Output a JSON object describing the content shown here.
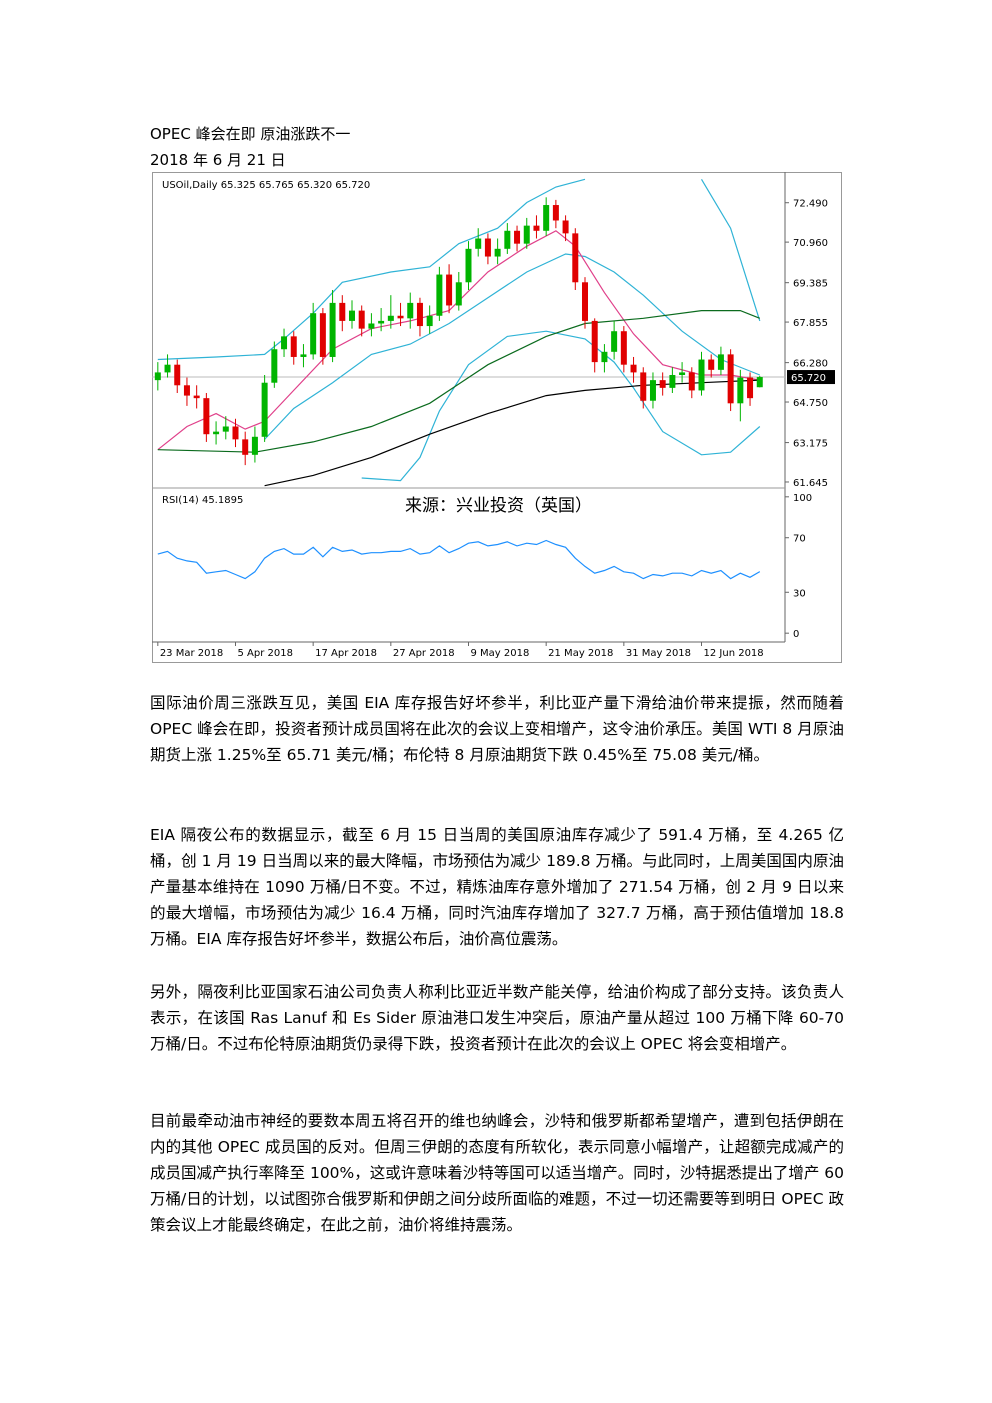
{
  "header": {
    "title": "OPEC 峰会在即  原油涨跌不一",
    "date": "2018 年 6 月 21 日"
  },
  "chart_data": {
    "type": "candlestick",
    "legend_text": "USOil,Daily  65.325 65.765 65.320 65.720",
    "watermark": "来源：兴业投资（英国）",
    "up_color": "#00b400",
    "down_color": "#e00000",
    "xlim": [
      -0.6,
      64.6
    ],
    "xticks": [
      {
        "value": 0,
        "label": "23 Mar 2018"
      },
      {
        "value": 8,
        "label": "5 Apr 2018"
      },
      {
        "value": 16,
        "label": "17 Apr 2018"
      },
      {
        "value": 24,
        "label": "27 Apr 2018"
      },
      {
        "value": 32,
        "label": "9 May 2018"
      },
      {
        "value": 40,
        "label": "21 May 2018"
      },
      {
        "value": 48,
        "label": "31 May 2018"
      },
      {
        "value": 56,
        "label": "12 Jun 2018"
      }
    ],
    "ylim": [
      61.45,
      73.45
    ],
    "yticks": [
      {
        "value": 72.49,
        "label": "72.490"
      },
      {
        "value": 70.96,
        "label": "70.960"
      },
      {
        "value": 69.385,
        "label": "69.385"
      },
      {
        "value": 67.855,
        "label": "67.855"
      },
      {
        "value": 66.28,
        "label": "66.280"
      },
      {
        "value": 64.75,
        "label": "64.750"
      },
      {
        "value": 63.175,
        "label": "63.175"
      },
      {
        "value": 61.645,
        "label": "61.645"
      }
    ],
    "last_price": {
      "value": 65.72,
      "label": "65.720"
    },
    "open": [
      65.6,
      65.9,
      66.2,
      65.4,
      65.0,
      64.9,
      63.5,
      63.6,
      63.8,
      63.3,
      62.7,
      63.4,
      65.5,
      66.8,
      67.3,
      66.5,
      66.6,
      68.2,
      66.5,
      68.6,
      67.9,
      68.3,
      67.6,
      67.8,
      67.9,
      68.1,
      68.0,
      68.6,
      67.7,
      68.1,
      69.7,
      68.5,
      69.4,
      70.7,
      71.1,
      70.4,
      70.7,
      71.4,
      70.9,
      71.6,
      71.4,
      72.4,
      71.8,
      71.3,
      69.4,
      67.9,
      66.3,
      66.7,
      67.5,
      66.2,
      65.9,
      64.8,
      65.6,
      65.3,
      65.8,
      65.9,
      65.2,
      66.4,
      66.0,
      66.6,
      64.7,
      65.7,
      65.325
    ],
    "high": [
      66.3,
      66.6,
      66.4,
      65.7,
      65.4,
      65.1,
      64.0,
      64.2,
      64.1,
      63.6,
      63.8,
      65.8,
      67.1,
      67.6,
      67.5,
      67.0,
      68.6,
      68.4,
      69.1,
      68.9,
      68.7,
      68.5,
      68.2,
      68.4,
      68.9,
      68.6,
      69.0,
      68.8,
      68.5,
      70.0,
      70.1,
      69.8,
      71.0,
      71.5,
      71.3,
      71.1,
      71.7,
      71.6,
      71.9,
      72.0,
      72.7,
      72.6,
      72.0,
      71.5,
      69.6,
      68.0,
      67.0,
      67.9,
      67.7,
      66.5,
      66.1,
      65.9,
      65.9,
      66.1,
      66.3,
      66.1,
      66.7,
      66.6,
      66.9,
      66.8,
      66.0,
      65.9,
      65.765
    ],
    "low": [
      65.2,
      65.7,
      65.1,
      64.6,
      64.5,
      63.2,
      63.1,
      63.3,
      63.0,
      62.3,
      62.4,
      63.2,
      65.3,
      66.5,
      66.2,
      66.1,
      66.4,
      66.2,
      66.3,
      67.5,
      67.6,
      67.3,
      67.3,
      67.5,
      67.6,
      67.7,
      67.6,
      67.3,
      67.4,
      67.9,
      68.2,
      68.3,
      69.1,
      70.4,
      70.1,
      70.1,
      70.5,
      70.6,
      70.7,
      71.1,
      71.2,
      71.5,
      71.0,
      69.1,
      67.6,
      65.9,
      65.9,
      66.4,
      65.9,
      65.5,
      64.5,
      64.5,
      65.0,
      65.1,
      65.5,
      64.9,
      65.0,
      65.7,
      65.8,
      64.4,
      64.0,
      64.6,
      65.32
    ],
    "close": [
      65.9,
      66.2,
      65.4,
      65.0,
      64.9,
      63.5,
      63.6,
      63.8,
      63.3,
      62.7,
      63.4,
      65.5,
      66.8,
      67.3,
      66.5,
      66.6,
      68.2,
      66.5,
      68.6,
      67.9,
      68.3,
      67.6,
      67.8,
      67.9,
      68.1,
      68.0,
      68.6,
      67.7,
      68.1,
      69.7,
      68.5,
      69.4,
      70.7,
      71.1,
      70.4,
      70.7,
      71.4,
      70.9,
      71.6,
      71.4,
      72.4,
      71.8,
      71.3,
      69.4,
      67.9,
      66.3,
      66.7,
      67.5,
      66.2,
      65.9,
      64.8,
      65.6,
      65.3,
      65.8,
      65.9,
      65.2,
      66.4,
      66.0,
      66.6,
      64.7,
      65.7,
      64.9,
      65.72
    ],
    "lines": [
      {
        "color": "#2fb3d6",
        "x": [
          0,
          6,
          11,
          13,
          16,
          19,
          24,
          28,
          31,
          35,
          38,
          41,
          44,
          null,
          56,
          59,
          62
        ],
        "values": [
          66.4,
          66.5,
          66.6,
          67.2,
          68.2,
          69.4,
          69.8,
          70.0,
          70.9,
          71.5,
          72.5,
          73.1,
          73.4,
          null,
          73.4,
          71.5,
          67.9
        ]
      },
      {
        "color": "#2fb3d6",
        "x": [
          21,
          25,
          27,
          29,
          32,
          36,
          40,
          44,
          47,
          49,
          52,
          56,
          59,
          62
        ],
        "values": [
          61.8,
          61.7,
          62.6,
          64.4,
          66.2,
          67.3,
          67.5,
          67.2,
          66.3,
          65.3,
          63.6,
          62.7,
          62.8,
          63.8
        ]
      },
      {
        "color": "#2fb3d6",
        "x": [
          11,
          14,
          18,
          22,
          26,
          30,
          34,
          38,
          42,
          44,
          47,
          50,
          54,
          58,
          62
        ],
        "values": [
          63.3,
          64.5,
          65.5,
          66.6,
          67.0,
          67.8,
          68.8,
          69.8,
          70.5,
          70.4,
          69.8,
          68.9,
          67.5,
          66.4,
          65.8
        ]
      },
      {
        "color": "#e0408a",
        "x": [
          0,
          3,
          6,
          9,
          11,
          14,
          18,
          22,
          26,
          30,
          34,
          38,
          41,
          43,
          46,
          49,
          52,
          56,
          59,
          62
        ],
        "values": [
          62.9,
          63.8,
          64.3,
          63.7,
          64.0,
          65.2,
          66.8,
          67.6,
          67.9,
          68.3,
          69.8,
          70.8,
          71.4,
          70.8,
          69.0,
          67.4,
          66.2,
          65.8,
          65.8,
          65.6
        ]
      },
      {
        "color": "#0b6b1e",
        "x": [
          0,
          10,
          16,
          22,
          28,
          34,
          40,
          44,
          50,
          56,
          60,
          62
        ],
        "values": [
          62.9,
          62.8,
          63.2,
          63.8,
          64.7,
          66.2,
          67.3,
          67.8,
          68.0,
          68.3,
          68.3,
          68.0
        ]
      },
      {
        "color": "#000000",
        "x": [
          11,
          16,
          22,
          28,
          34,
          40,
          44,
          50,
          56,
          62
        ],
        "values": [
          61.5,
          61.9,
          62.6,
          63.5,
          64.3,
          65.0,
          65.2,
          65.4,
          65.5,
          65.6
        ]
      }
    ],
    "rsi": {
      "label": "RSI(14) 45.1895",
      "color": "#1e90ff",
      "ylim": [
        -5,
        105
      ],
      "yticks": [
        100,
        70,
        30,
        0
      ],
      "values": [
        58,
        60,
        55,
        53,
        52,
        44,
        45,
        46,
        43,
        40,
        45,
        55,
        60,
        62,
        58,
        58,
        63,
        56,
        63,
        60,
        61,
        58,
        59,
        59,
        60,
        60,
        62,
        58,
        59,
        64,
        59,
        62,
        66,
        67,
        64,
        65,
        67,
        64,
        66,
        65,
        68,
        65,
        63,
        55,
        49,
        44,
        46,
        49,
        45,
        44,
        40,
        43,
        42,
        44,
        44,
        42,
        46,
        44,
        46,
        40,
        44,
        41,
        45.19
      ]
    }
  },
  "paragraphs": [
    "国际油价周三涨跌互见，美国 EIA 库存报告好坏参半，利比亚产量下滑给油价带来提振，然而随着 OPEC 峰会在即，投资者预计成员国将在此次的会议上变相增产，这令油价承压。美国 WTI 8 月原油期货上涨 1.25%至 65.71 美元/桶；布伦特 8 月原油期货下跌 0.45%至 75.08 美元/桶。",
    "EIA 隔夜公布的数据显示，截至 6 月 15 日当周的美国原油库存减少了 591.4 万桶，至 4.265 亿桶，创 1 月 19 日当周以来的最大降幅，市场预估为减少 189.8 万桶。与此同时，上周美国国内原油产量基本维持在 1090 万桶/日不变。不过，精炼油库存意外增加了 271.54 万桶，创 2 月 9 日以来的最大增幅，市场预估为减少 16.4 万桶，同时汽油库存增加了 327.7 万桶，高于预估值增加 18.8 万桶。EIA 库存报告好坏参半，数据公布后，油价高位震荡。",
    "另外，隔夜利比亚国家石油公司负责人称利比亚近半数产能关停，给油价构成了部分支持。该负责人表示，在该国 Ras Lanuf 和 Es Sider 原油港口发生冲突后，原油产量从超过 100 万桶下降 60-70 万桶/日。不过布伦特原油期货仍录得下跌，投资者预计在此次的会议上 OPEC 将会变相增产。",
    "目前最牵动油市神经的要数本周五将召开的维也纳峰会，沙特和俄罗斯都希望增产，遭到包括伊朗在内的其他 OPEC 成员国的反对。但周三伊朗的态度有所软化，表示同意小幅增产，让超额完成减产的成员国减产执行率降至 100%，这或许意味着沙特等国可以适当增产。同时，沙特据悉提出了增产 60 万桶/日的计划，以试图弥合俄罗斯和伊朗之间分歧所面临的难题，不过一切还需要等到明日 OPEC 政策会议上才能最终确定，在此之前，油价将维持震荡。"
  ]
}
